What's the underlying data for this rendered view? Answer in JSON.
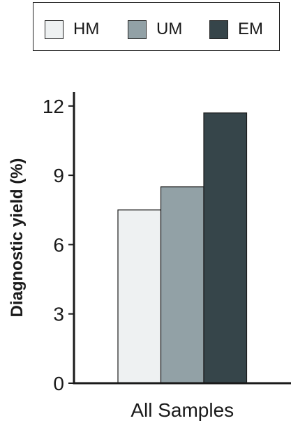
{
  "chart_data": {
    "type": "bar",
    "categories": [
      "All Samples"
    ],
    "series": [
      {
        "name": "HM",
        "values": [
          7.5
        ],
        "color": "#eef1f2"
      },
      {
        "name": "UM",
        "values": [
          8.5
        ],
        "color": "#92a1a6"
      },
      {
        "name": "EM",
        "values": [
          11.7
        ],
        "color": "#36454a"
      }
    ],
    "title": "",
    "xlabel": "",
    "ylabel": "Diagnostic yield (%)",
    "ylim": [
      0,
      12.6
    ],
    "yticks": [
      0,
      3,
      6,
      9,
      12
    ],
    "grid": false,
    "legend_position": "top"
  }
}
